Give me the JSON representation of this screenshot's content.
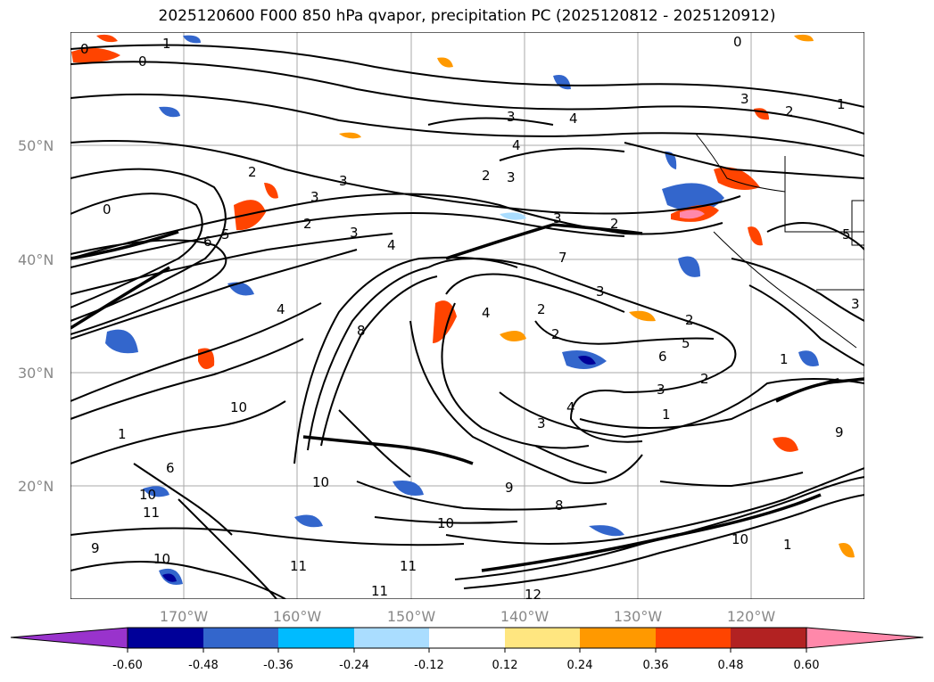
{
  "title": "2025120600 F000 850 hPa qvapor, precipitation PC (2025120812 - 2025120912)",
  "map": {
    "lat_labels": [
      "50°N",
      "40°N",
      "30°N",
      "20°N"
    ],
    "lon_labels": [
      "170°W",
      "160°W",
      "150°W",
      "140°W",
      "130°W",
      "120°W"
    ],
    "contour_labels": [
      "0",
      "1",
      "2",
      "3",
      "4",
      "5",
      "6",
      "7",
      "8",
      "9",
      "10",
      "11",
      "12"
    ]
  },
  "colorbar": {
    "ticks": [
      "-0.60",
      "-0.48",
      "-0.36",
      "-0.24",
      "-0.12",
      "0.12",
      "0.24",
      "0.36",
      "0.48",
      "0.60"
    ],
    "colors": [
      "#9933cc",
      "#000099",
      "#3366cc",
      "#00bbff",
      "#aaddff",
      "#ffffff",
      "#ffe680",
      "#ff9900",
      "#ff4400",
      "#b22222",
      "#ff88aa"
    ]
  }
}
